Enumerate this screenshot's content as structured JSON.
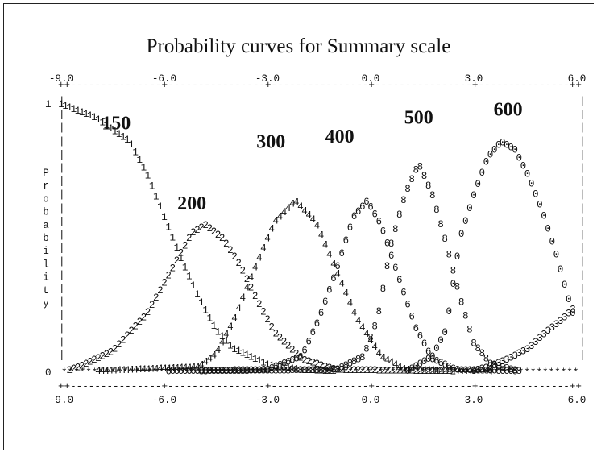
{
  "title": "Probability curves for Summary scale",
  "chart_data": {
    "type": "line",
    "render": "ascii-character-plot",
    "title": "Probability curves for Summary scale",
    "x_ticks": [
      "-9.0",
      "-6.0",
      "-3.0",
      "0.0",
      "3.0",
      "6.0"
    ],
    "xlim": [
      -9,
      6
    ],
    "y_ticks": [
      "1",
      "0"
    ],
    "ylim": [
      0,
      1
    ],
    "y_axis_label": "Probability",
    "axis_char": "*",
    "series": [
      {
        "name": "150",
        "label_anchor": [
          -7.4,
          0.93
        ],
        "points": [
          [
            -9.0,
            1.0
          ],
          [
            -8.0,
            0.95
          ],
          [
            -7.0,
            0.86
          ],
          [
            -6.5,
            0.74
          ],
          [
            -6.0,
            0.58
          ],
          [
            -5.5,
            0.42
          ],
          [
            -5.0,
            0.28
          ],
          [
            -4.5,
            0.16
          ],
          [
            -4.0,
            0.09
          ],
          [
            -3.0,
            0.03
          ],
          [
            -2.0,
            0.01
          ],
          [
            0.0,
            0.0
          ],
          [
            6.0,
            0.0
          ]
        ]
      },
      {
        "name": "200",
        "label_anchor": [
          -5.2,
          0.63
        ],
        "points": [
          [
            -9.0,
            0.0
          ],
          [
            -8.5,
            0.02
          ],
          [
            -7.5,
            0.08
          ],
          [
            -6.5,
            0.22
          ],
          [
            -5.8,
            0.38
          ],
          [
            -5.2,
            0.52
          ],
          [
            -4.8,
            0.55
          ],
          [
            -4.3,
            0.5
          ],
          [
            -3.8,
            0.4
          ],
          [
            -3.3,
            0.27
          ],
          [
            -2.8,
            0.15
          ],
          [
            -2.0,
            0.05
          ],
          [
            -1.0,
            0.01
          ],
          [
            6.0,
            0.0
          ]
        ]
      },
      {
        "name": "300",
        "label_anchor": [
          -2.9,
          0.86
        ],
        "points": [
          [
            -9.0,
            0.0
          ],
          [
            -5.0,
            0.02
          ],
          [
            -4.5,
            0.07
          ],
          [
            -4.0,
            0.19
          ],
          [
            -3.4,
            0.38
          ],
          [
            -2.8,
            0.56
          ],
          [
            -2.2,
            0.64
          ],
          [
            -1.6,
            0.56
          ],
          [
            -1.0,
            0.38
          ],
          [
            -0.4,
            0.2
          ],
          [
            0.3,
            0.06
          ],
          [
            1.0,
            0.01
          ],
          [
            6.0,
            0.0
          ]
        ]
      },
      {
        "name": "400",
        "label_anchor": [
          -0.9,
          0.88
        ],
        "points": [
          [
            -9.0,
            0.0
          ],
          [
            -3.0,
            0.01
          ],
          [
            -2.0,
            0.06
          ],
          [
            -1.5,
            0.2
          ],
          [
            -1.0,
            0.38
          ],
          [
            -0.5,
            0.58
          ],
          [
            -0.1,
            0.64
          ],
          [
            0.3,
            0.55
          ],
          [
            0.8,
            0.36
          ],
          [
            1.3,
            0.17
          ],
          [
            1.8,
            0.05
          ],
          [
            2.5,
            0.01
          ],
          [
            6.0,
            0.0
          ]
        ]
      },
      {
        "name": "500",
        "label_anchor": [
          1.4,
          0.95
        ],
        "points": [
          [
            -9.0,
            0.0
          ],
          [
            -1.0,
            0.01
          ],
          [
            -0.2,
            0.06
          ],
          [
            0.2,
            0.2
          ],
          [
            0.6,
            0.48
          ],
          [
            1.0,
            0.66
          ],
          [
            1.4,
            0.78
          ],
          [
            1.8,
            0.66
          ],
          [
            2.2,
            0.48
          ],
          [
            2.6,
            0.28
          ],
          [
            3.0,
            0.11
          ],
          [
            3.5,
            0.03
          ],
          [
            4.5,
            0.0
          ],
          [
            6.0,
            0.0
          ]
        ]
      },
      {
        "name": "600",
        "label_anchor": [
          4.0,
          0.98
        ],
        "points": [
          [
            -9.0,
            0.0
          ],
          [
            1.0,
            0.0
          ],
          [
            1.8,
            0.06
          ],
          [
            2.2,
            0.16
          ],
          [
            2.6,
            0.5
          ],
          [
            3.0,
            0.66
          ],
          [
            3.4,
            0.8
          ],
          [
            3.8,
            0.86
          ],
          [
            4.2,
            0.83
          ],
          [
            4.6,
            0.73
          ],
          [
            5.0,
            0.6
          ],
          [
            5.4,
            0.44
          ],
          [
            5.7,
            0.3
          ],
          [
            6.0,
            0.17
          ]
        ]
      },
      {
        "name": "",
        "points": [
          [
            2.8,
            0.0
          ],
          [
            3.4,
            0.02
          ],
          [
            4.0,
            0.05
          ],
          [
            4.6,
            0.09
          ],
          [
            5.1,
            0.15
          ],
          [
            5.6,
            0.2
          ],
          [
            6.0,
            0.25
          ]
        ]
      }
    ]
  }
}
